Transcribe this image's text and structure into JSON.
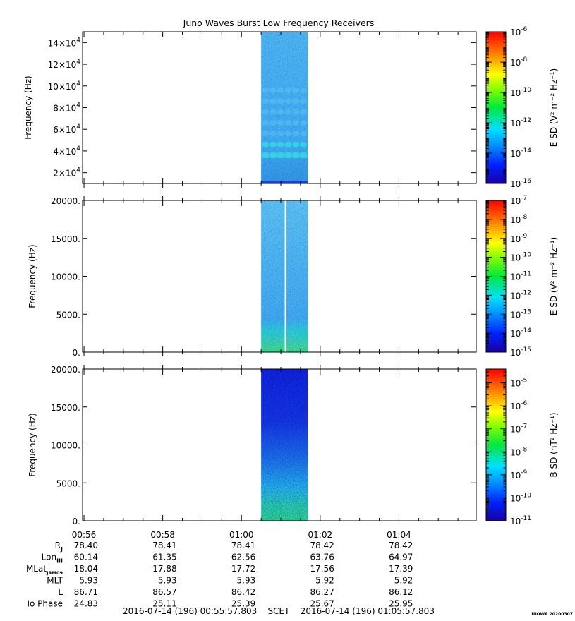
{
  "title": "Juno Waves Burst Low Frequency Receivers",
  "colors": {
    "panel1_high": "#4ab8f0",
    "panel1_low": "#2a8fe0",
    "panel2_high": "#5cc6f2",
    "panel2_low": "#3aa8ee",
    "panel2_floor": "#40e070",
    "panel3_top": "#0a1ad8",
    "panel3_mid": "#1a78e8",
    "panel3_floor": "#2ee878",
    "gap_line": "#ffffff"
  },
  "chart_data": [
    {
      "type": "heatmap",
      "name": "",
      "ylabel": "Frequency (Hz)",
      "y_ticks": [
        {
          "value": 20000,
          "mantissa": "2×10",
          "exp": "4"
        },
        {
          "value": 40000,
          "mantissa": "4×10",
          "exp": "4"
        },
        {
          "value": 60000,
          "mantissa": "6×10",
          "exp": "4"
        },
        {
          "value": 80000,
          "mantissa": "8×10",
          "exp": "4"
        },
        {
          "value": 100000,
          "mantissa": "10×10",
          "exp": "4"
        },
        {
          "value": 120000,
          "mantissa": "12×10",
          "exp": "4"
        },
        {
          "value": 140000,
          "mantissa": "14×10",
          "exp": "4"
        }
      ],
      "ylim": [
        10000,
        150000
      ],
      "data_extent": {
        "x_start": "01:00:30",
        "x_end": "01:01:41"
      },
      "colorbar": {
        "label": "E SD (V² m⁻² Hz⁻¹)",
        "scale": "log",
        "range_exp": [
          -16,
          -6
        ],
        "ticks": [
          {
            "mantissa": "10",
            "exp": "-6"
          },
          {
            "mantissa": "10",
            "exp": "-8"
          },
          {
            "mantissa": "10",
            "exp": "-10"
          },
          {
            "mantissa": "10",
            "exp": "-12"
          },
          {
            "mantissa": "10",
            "exp": "-14"
          },
          {
            "mantissa": "10",
            "exp": "-16"
          }
        ]
      }
    },
    {
      "type": "heatmap",
      "name": "",
      "ylabel": "Frequency (Hz)",
      "y_ticks": [
        {
          "value": 0,
          "label": "0."
        },
        {
          "value": 5000,
          "label": "5000."
        },
        {
          "value": 10000,
          "label": "10000."
        },
        {
          "value": 15000,
          "label": "15000."
        },
        {
          "value": 20000,
          "label": "20000."
        }
      ],
      "ylim": [
        0,
        20000
      ],
      "data_extent": {
        "x_start": "01:00:30",
        "x_end": "01:01:41",
        "gap_at": "01:01:07"
      },
      "colorbar": {
        "label": "E SD (V² m⁻² Hz⁻¹)",
        "scale": "log",
        "range_exp": [
          -15,
          -7
        ],
        "ticks": [
          {
            "mantissa": "10",
            "exp": "-7"
          },
          {
            "mantissa": "10",
            "exp": "-8"
          },
          {
            "mantissa": "10",
            "exp": "-9"
          },
          {
            "mantissa": "10",
            "exp": "-10"
          },
          {
            "mantissa": "10",
            "exp": "-11"
          },
          {
            "mantissa": "10",
            "exp": "-12"
          },
          {
            "mantissa": "10",
            "exp": "-13"
          },
          {
            "mantissa": "10",
            "exp": "-14"
          },
          {
            "mantissa": "10",
            "exp": "-15"
          }
        ]
      }
    },
    {
      "type": "heatmap",
      "name": "",
      "ylabel": "Frequency (Hz)",
      "y_ticks": [
        {
          "value": 0,
          "label": "0."
        },
        {
          "value": 5000,
          "label": "5000."
        },
        {
          "value": 10000,
          "label": "10000."
        },
        {
          "value": 15000,
          "label": "15000."
        },
        {
          "value": 20000,
          "label": "20000."
        }
      ],
      "ylim": [
        0,
        20000
      ],
      "data_extent": {
        "x_start": "01:00:30",
        "x_end": "01:01:41"
      },
      "colorbar": {
        "label": "B SD (nT² Hz⁻¹)",
        "scale": "log",
        "range_exp": [
          -11,
          -4.4
        ],
        "ticks": [
          {
            "mantissa": "10",
            "exp": "-5"
          },
          {
            "mantissa": "10",
            "exp": "-6"
          },
          {
            "mantissa": "10",
            "exp": "-7"
          },
          {
            "mantissa": "10",
            "exp": "-8"
          },
          {
            "mantissa": "10",
            "exp": "-9"
          },
          {
            "mantissa": "10",
            "exp": "-10"
          },
          {
            "mantissa": "10",
            "exp": "-11"
          }
        ]
      }
    }
  ],
  "x_axis": {
    "start": "00:55:57.803",
    "end": "01:05:57.803",
    "major_ticks": [
      "00:56",
      "00:58",
      "01:00",
      "01:02",
      "01:04"
    ]
  },
  "ephemeris": {
    "columns": [
      "00:56",
      "00:58",
      "01:00",
      "01:02",
      "01:04"
    ],
    "rows": [
      {
        "label": "R",
        "sub": "J",
        "values": [
          "78.40",
          "78.41",
          "78.41",
          "78.42",
          "78.42"
        ]
      },
      {
        "label": "Lon",
        "sub": "III",
        "values": [
          "60.14",
          "61.35",
          "62.56",
          "63.76",
          "64.97"
        ]
      },
      {
        "label": "MLat",
        "sub": "JRM09",
        "values": [
          "-18.04",
          "-17.88",
          "-17.72",
          "-17.56",
          "-17.39"
        ]
      },
      {
        "label": "MLT",
        "sub": "",
        "values": [
          "5.93",
          "5.93",
          "5.93",
          "5.92",
          "5.92"
        ]
      },
      {
        "label": "L",
        "sub": "",
        "values": [
          "86.71",
          "86.57",
          "86.42",
          "86.27",
          "86.12"
        ]
      },
      {
        "label": "Io Phase",
        "sub": "",
        "values": [
          "24.83",
          "25.11",
          "25.39",
          "25.67",
          "25.95"
        ]
      }
    ]
  },
  "footer": {
    "range_text": "2016-07-14 (196) 00:55:57.803    SCET    2016-07-14 (196) 01:05:57.803",
    "stamp": "UIOWA 20200307"
  }
}
